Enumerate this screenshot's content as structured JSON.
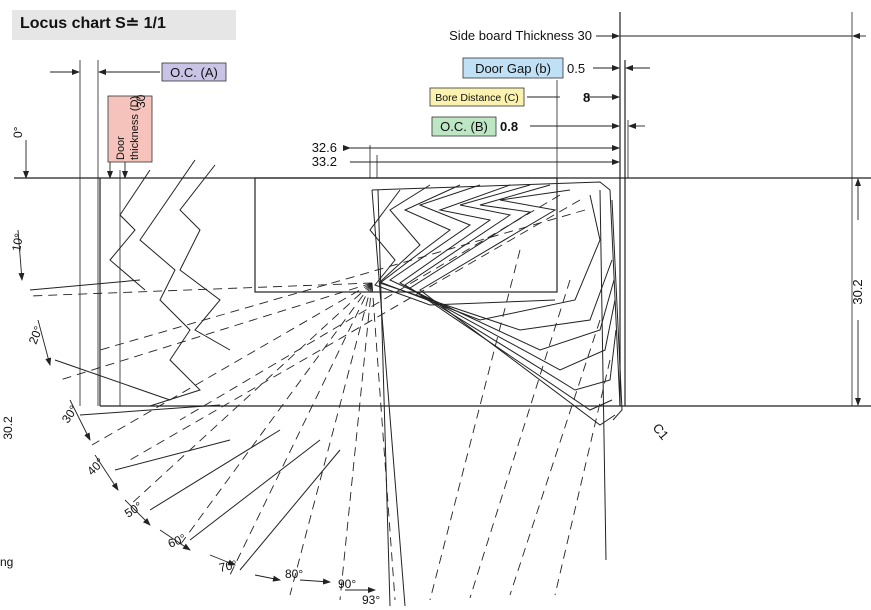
{
  "title": "Locus chart S≐ 1/1",
  "labels": {
    "side_board": "Side board Thickness 30",
    "oc_a": "O.C. (A)",
    "door_gap": "Door Gap (b)",
    "door_gap_value": "0.5",
    "bore_distance": "Bore Distance (C)",
    "bore_value": "8",
    "oc_b": "O.C. (B)",
    "oc_b_value": "0.8",
    "door_thickness_line1": "Door",
    "door_thickness_line2": "thickness (D)",
    "door_thickness_value": "30",
    "dim_326": "32.6",
    "dim_332": "33.2",
    "dim_302_right": "30.2",
    "dim_302_left": "30.2",
    "c1": "C1",
    "partial_text": "ng"
  },
  "angles": [
    "0°",
    "10°",
    "20°",
    "30°",
    "40°",
    "50°",
    "60°",
    "70°",
    "80°",
    "90°",
    "93°"
  ],
  "colors": {
    "oc_a_fill": "#c9c3e6",
    "door_thickness_fill": "#f6c3bc",
    "door_gap_fill": "#bfe0f5",
    "bore_fill": "#fbf2b0",
    "oc_b_fill": "#bde6c5",
    "title_bg": "#e6e6e6"
  }
}
